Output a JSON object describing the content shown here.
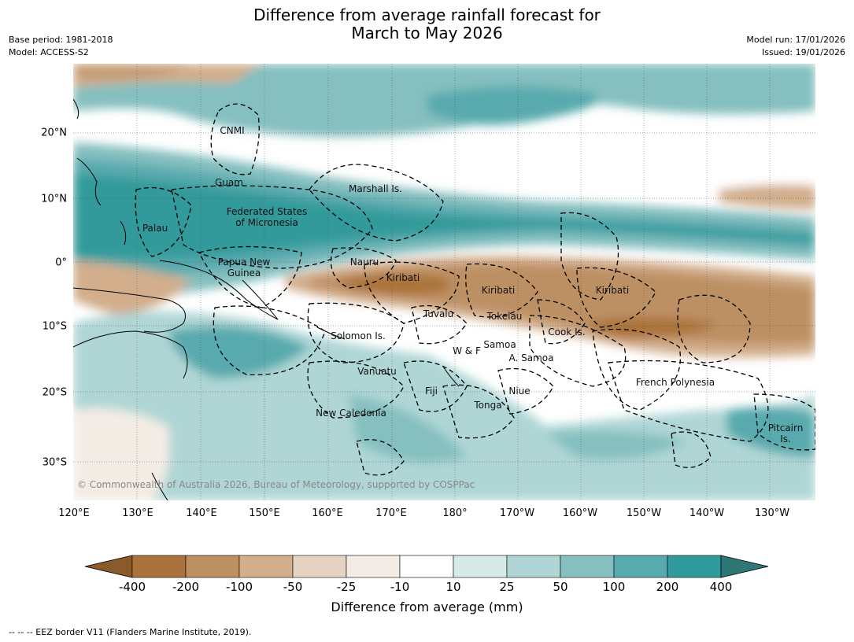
{
  "title_line1": "Difference from average rainfall forecast for",
  "title_line2": "March to May 2026",
  "meta_left": [
    "Base period: 1981-2018",
    "Model: ACCESS-S2"
  ],
  "meta_right": [
    "Model run: 17/01/2026",
    "Issued: 19/01/2026"
  ],
  "lon_labels": [
    "120°E",
    "130°E",
    "140°E",
    "150°E",
    "160°E",
    "170°E",
    "180°",
    "170°W",
    "160°W",
    "150°W",
    "140°W",
    "130°W"
  ],
  "lat_labels": [
    "20°N",
    "10°N",
    "0°",
    "10°S",
    "20°S",
    "30°S"
  ],
  "regions": {
    "cnmi": "CNMI",
    "guam": "Guam",
    "marshall": "Marshall Is.",
    "fsm_line1": "Federated States",
    "fsm_line2": "of Micronesia",
    "palau": "Palau",
    "png_line1": "Papua New",
    "png_line2": "Guinea",
    "nauru": "Nauru",
    "kiribati_west": "Kiribati",
    "kiribati_central": "Kiribati",
    "kiribati_east": "Kiribati",
    "tuvalu": "Tuvalu",
    "tokelau": "Tokelau",
    "cook": "Cook Is.",
    "solomon": "Solomon Is.",
    "wallis": "W & F",
    "samoa": "Samoa",
    "am_samoa": "A. Samoa",
    "vanuatu": "Vanuatu",
    "fiji": "Fiji",
    "niue": "Niue",
    "french_polynesia": "French Polynesia",
    "tonga": "Tonga",
    "new_caledonia": "New Caledonia",
    "pitcairn_line1": "Pitcairn",
    "pitcairn_line2": "Is."
  },
  "copyright": "© Commonwealth of Australia 2026, Bureau of Meteorology, supported by COSPPac",
  "colorbar": {
    "ticks": [
      "-400",
      "-200",
      "-100",
      "-50",
      "-25",
      "-10",
      "10",
      "25",
      "50",
      "100",
      "200",
      "400"
    ],
    "colors": [
      "#8b5a2b",
      "#ab733b",
      "#bd9063",
      "#d2ae8c",
      "#e5d2c0",
      "#f3ece4",
      "#ffffff",
      "#d6eae8",
      "#afd6d5",
      "#85bfc0",
      "#59aaae",
      "#319a9a",
      "#2d7774"
    ],
    "label": "Difference from average (mm)"
  },
  "footnote": "--  --  -- EEZ border V11 (Flanders Marine Institute, 2019)."
}
